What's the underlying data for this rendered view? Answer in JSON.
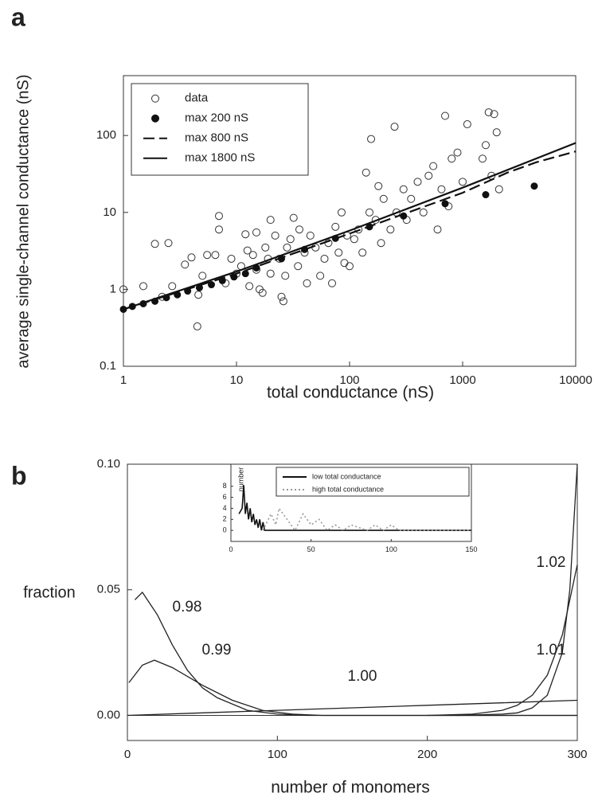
{
  "chart_data": [
    {
      "type": "scatter",
      "panel_label": "a",
      "xlabel": "total conductance (nS)",
      "ylabel": "average single-channel conductance (nS)",
      "xscale": "log",
      "yscale": "log",
      "xlim": [
        1,
        10000
      ],
      "ylim": [
        0.1,
        600
      ],
      "xticks": [
        1,
        10,
        100,
        1000,
        10000
      ],
      "yticks": [
        0.1,
        1,
        10,
        100
      ],
      "legend": "upper left",
      "series": [
        {
          "name": "data",
          "style": "open",
          "color": "#333333",
          "x": [
            1,
            1.5,
            1.9,
            2.5,
            2.2,
            2.7,
            3.5,
            4,
            4.5,
            4.6,
            5,
            5.5,
            6.5,
            7,
            7,
            8,
            9,
            10,
            11,
            12,
            12.5,
            13,
            14,
            15,
            15,
            16,
            17,
            18,
            19,
            20,
            20,
            22,
            24,
            25,
            26,
            27,
            28,
            30,
            32,
            35,
            36,
            40,
            42,
            45,
            50,
            55,
            60,
            65,
            70,
            75,
            80,
            85,
            90,
            95,
            100,
            110,
            120,
            130,
            140,
            150,
            155,
            170,
            180,
            190,
            200,
            230,
            250,
            260,
            300,
            320,
            350,
            400,
            450,
            500,
            550,
            600,
            650,
            700,
            750,
            800,
            900,
            1000,
            1100,
            1500,
            1600,
            1700,
            1800,
            1900,
            2000,
            2100
          ],
          "values": [
            1,
            1.1,
            3.9,
            4,
            0.8,
            1.1,
            2.1,
            2.6,
            0.33,
            0.85,
            1.5,
            2.8,
            2.8,
            9,
            6,
            1.2,
            2.5,
            1.6,
            2,
            5.2,
            3.2,
            1.1,
            2.8,
            1.8,
            5.5,
            1,
            0.9,
            3.5,
            2.5,
            8,
            1.6,
            5,
            2.5,
            0.8,
            0.7,
            1.5,
            3.5,
            4.5,
            8.5,
            2,
            6,
            3,
            1.2,
            5,
            3.5,
            1.5,
            2.5,
            4,
            1.2,
            6.5,
            3,
            10,
            2.2,
            5,
            2,
            4.5,
            6,
            3,
            33,
            10,
            90,
            8,
            22,
            4,
            15,
            6,
            130,
            10,
            20,
            8,
            15,
            25,
            10,
            30,
            40,
            6,
            20,
            180,
            12,
            50,
            60,
            25,
            140,
            50,
            75,
            200,
            30,
            190,
            110,
            20
          ]
        },
        {
          "name": "max 200 nS",
          "style": "filled",
          "color": "#111111",
          "x": [
            1,
            1.2,
            1.5,
            1.9,
            2.4,
            3,
            3.7,
            4.7,
            6,
            7.5,
            9.5,
            12,
            15,
            25,
            40,
            75,
            150,
            300,
            700,
            1600,
            4300
          ],
          "values": [
            0.55,
            0.6,
            0.65,
            0.7,
            0.78,
            0.85,
            0.95,
            1.05,
            1.15,
            1.3,
            1.45,
            1.6,
            1.9,
            2.5,
            3.3,
            4.6,
            6.5,
            9,
            13,
            17,
            22
          ]
        },
        {
          "name": "max 800 nS",
          "style": "dashed",
          "color": "#111111",
          "x": [
            1,
            10,
            100,
            1000,
            2500,
            4500,
            10000
          ],
          "values": [
            0.55,
            1.6,
            5.3,
            18,
            33,
            45,
            62
          ]
        },
        {
          "name": "max 1800 nS",
          "style": "solid",
          "color": "#111111",
          "x": [
            1,
            10,
            100,
            1000,
            10000
          ],
          "values": [
            0.55,
            1.7,
            5.8,
            21,
            80
          ]
        }
      ]
    },
    {
      "type": "line",
      "panel_label": "b",
      "xlabel": "number of monomers",
      "ylabel": "fraction",
      "xlim": [
        0,
        300
      ],
      "ylim": [
        -0.01,
        0.1
      ],
      "xticks": [
        0,
        100,
        200,
        300
      ],
      "yticks": [
        {
          "value": 0,
          "label": "0.00"
        },
        {
          "value": 0.05,
          "label": "0.05"
        },
        {
          "value": 0.1,
          "label": "0.10"
        }
      ],
      "zero_line": true,
      "series": [
        {
          "name": "0.98",
          "style": "solid",
          "color": "#222222",
          "x": [
            5,
            10,
            20,
            30,
            40,
            50,
            60,
            80,
            100,
            120,
            300
          ],
          "values": [
            0.046,
            0.049,
            0.04,
            0.028,
            0.018,
            0.011,
            0.007,
            0.002,
            0.0005,
            0,
            0
          ]
        },
        {
          "name": "0.99",
          "style": "solid",
          "color": "#222222",
          "x": [
            1,
            10,
            18,
            30,
            50,
            70,
            90,
            110,
            130,
            300
          ],
          "values": [
            0.013,
            0.02,
            0.022,
            0.019,
            0.012,
            0.006,
            0.002,
            0.0005,
            0,
            0
          ]
        },
        {
          "name": "1.00",
          "style": "solid",
          "color": "#222222",
          "x": [
            0,
            50,
            100,
            150,
            200,
            250,
            300
          ],
          "values": [
            0,
            0.001,
            0.002,
            0.003,
            0.004,
            0.005,
            0.006
          ]
        },
        {
          "name": "1.01",
          "style": "solid",
          "color": "#222222",
          "x": [
            200,
            230,
            250,
            260,
            270,
            280,
            290,
            300
          ],
          "values": [
            0,
            0.0005,
            0.002,
            0.004,
            0.008,
            0.016,
            0.032,
            0.06
          ]
        },
        {
          "name": "1.02",
          "style": "solid",
          "color": "#222222",
          "x": [
            220,
            250,
            260,
            270,
            280,
            290,
            295,
            300
          ],
          "values": [
            0,
            0.0005,
            0.001,
            0.003,
            0.008,
            0.025,
            0.05,
            0.1
          ]
        }
      ]
    },
    {
      "type": "line",
      "ylabel": "number",
      "xlim": [
        0,
        150
      ],
      "ylim": [
        -2,
        12
      ],
      "xticks": [
        0,
        50,
        100,
        150
      ],
      "yticks": [
        0,
        2,
        4,
        6,
        8
      ],
      "legend": "upper right",
      "series": [
        {
          "name": "low total conductance",
          "style": "solid",
          "color": "#111111",
          "x": [
            5,
            7,
            8,
            9,
            10,
            11,
            12,
            13,
            14,
            15,
            16,
            17,
            18,
            19,
            20,
            21,
            22,
            150
          ],
          "values": [
            3,
            4,
            8.2,
            3,
            5,
            2,
            4,
            1.5,
            3,
            1,
            2,
            0.5,
            2,
            0,
            1.5,
            0,
            0,
            0
          ]
        },
        {
          "name": "high total conductance",
          "style": "dotted",
          "color": "#999999",
          "x": [
            20,
            25,
            28,
            30,
            35,
            40,
            45,
            50,
            55,
            60,
            65,
            70,
            75,
            80,
            85,
            90,
            95,
            100,
            105,
            110,
            150
          ],
          "values": [
            0,
            3,
            1,
            4,
            2,
            0,
            3,
            1,
            2,
            0,
            1,
            0,
            1,
            0.5,
            0,
            1,
            0,
            1,
            0,
            0,
            0
          ]
        }
      ]
    }
  ]
}
